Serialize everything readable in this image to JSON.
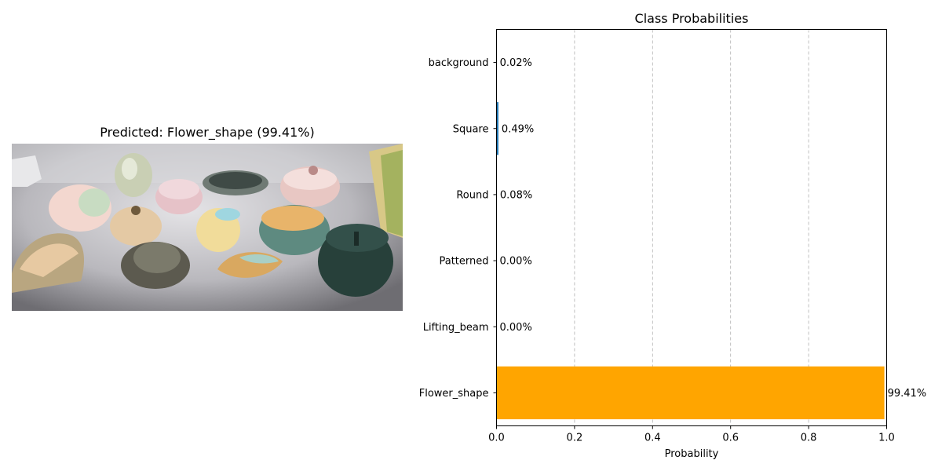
{
  "left_panel": {
    "title": "Predicted: Flower_shape (99.41%)"
  },
  "chart_data": {
    "type": "bar",
    "orientation": "horizontal",
    "title": "Class Probabilities",
    "xlabel": "Probability",
    "ylabel": "",
    "categories": [
      "background",
      "Square",
      "Round",
      "Patterned",
      "Lifting_beam",
      "Flower_shape"
    ],
    "values": [
      0.0002,
      0.0049,
      0.0008,
      0.0,
      0.0,
      0.9941
    ],
    "data_labels": [
      "0.02%",
      "0.49%",
      "0.08%",
      "0.00%",
      "0.00%",
      "99.41%"
    ],
    "bar_colors": [
      "#1f77b4",
      "#1f77b4",
      "#1f77b4",
      "#1f77b4",
      "#1f77b4",
      "#ffa500"
    ],
    "xlim": [
      0,
      1.0
    ],
    "xticks": [
      0.0,
      0.2,
      0.4,
      0.6,
      0.8,
      1.0
    ],
    "xtick_labels": [
      "0.0",
      "0.2",
      "0.4",
      "0.6",
      "0.8",
      "1.0"
    ],
    "grid": "x-dashed",
    "legend": "none"
  }
}
